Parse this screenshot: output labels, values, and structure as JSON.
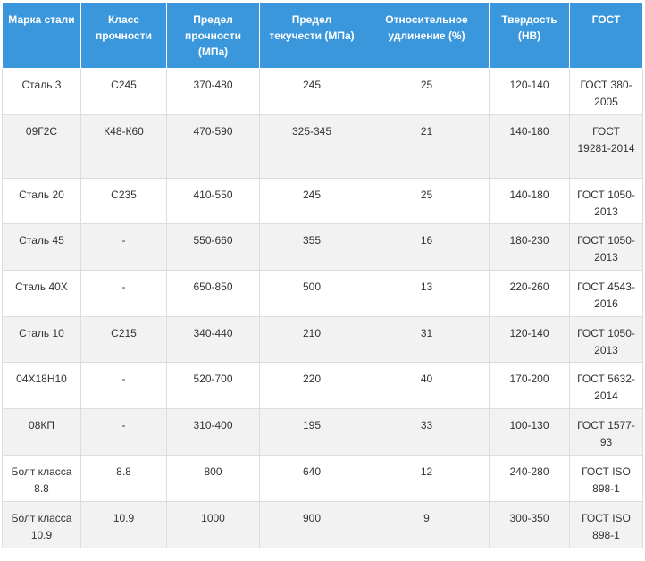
{
  "table": {
    "headers": [
      "Марка стали",
      "Класс прочности",
      "Предел прочности (МПа)",
      "Предел текучести (МПа)",
      "Относительное удлинение (%)",
      "Твердость (HB)",
      "ГОСТ"
    ],
    "rows": [
      [
        "Сталь 3",
        "C245",
        "370-480",
        "245",
        "25",
        "120-140",
        "ГОСТ 380-2005"
      ],
      [
        "09Г2С",
        "К48-К60",
        "470-590",
        "325-345",
        "21",
        "140-180",
        "ГОСТ 19281-2014"
      ],
      [
        "Сталь 20",
        "C235",
        "410-550",
        "245",
        "25",
        "140-180",
        "ГОСТ 1050-2013"
      ],
      [
        "Сталь 45",
        "-",
        "550-660",
        "355",
        "16",
        "180-230",
        "ГОСТ 1050-2013"
      ],
      [
        "Сталь 40Х",
        "-",
        "650-850",
        "500",
        "13",
        "220-260",
        "ГОСТ 4543-2016"
      ],
      [
        "Сталь 10",
        "C215",
        "340-440",
        "210",
        "31",
        "120-140",
        "ГОСТ 1050-2013"
      ],
      [
        "04Х18Н10",
        "-",
        "520-700",
        "220",
        "40",
        "170-200",
        "ГОСТ 5632-2014"
      ],
      [
        "08КП",
        "-",
        "310-400",
        "195",
        "33",
        "100-130",
        "ГОСТ 1577-93"
      ],
      [
        "Болт класса 8.8",
        "8.8",
        "800",
        "640",
        "12",
        "240-280",
        "ГОСТ ISO 898-1"
      ],
      [
        "Болт класса 10.9",
        "10.9",
        "1000",
        "900",
        "9",
        "300-350",
        "ГОСТ ISO 898-1"
      ]
    ]
  },
  "colors": {
    "header_bg": "#3a97dc",
    "header_text": "#ffffff",
    "row_alt_bg": "#f2f2f2",
    "border": "#dddddd",
    "body_text": "#333333"
  }
}
